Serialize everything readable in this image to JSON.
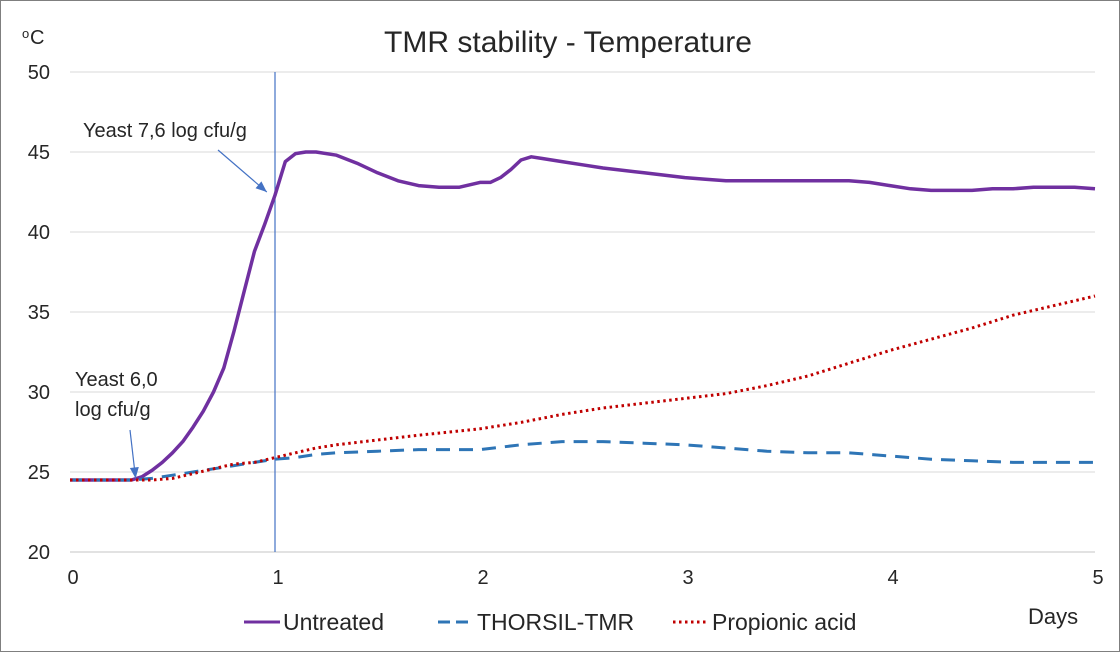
{
  "chart_data": {
    "type": "line",
    "title": "TMR stability - Temperature",
    "ylabel_prefix": "o",
    "ylabel_main": "C",
    "xlabel": "Days",
    "xlim": [
      0,
      5
    ],
    "ylim": [
      20,
      50
    ],
    "xticks": [
      0,
      1,
      2,
      3,
      4,
      5
    ],
    "yticks": [
      20,
      25,
      30,
      35,
      40,
      45,
      50
    ],
    "grid": true,
    "legend_position": "bottom",
    "vertical_marker_x": 1,
    "annotations": [
      {
        "lines": [
          "Yeast 7,6 log cfu/g"
        ],
        "arrow_to": [
          0.96,
          42.5
        ]
      },
      {
        "lines": [
          "Yeast 6,0",
          "log cfu/g"
        ],
        "arrow_to": [
          0.32,
          24.6
        ]
      }
    ],
    "series": [
      {
        "name": "Untreated",
        "color": "#7030a0",
        "style": "solid",
        "points": [
          [
            0,
            24.5
          ],
          [
            0.3,
            24.5
          ],
          [
            0.35,
            24.7
          ],
          [
            0.4,
            25.1
          ],
          [
            0.45,
            25.6
          ],
          [
            0.5,
            26.2
          ],
          [
            0.55,
            26.9
          ],
          [
            0.6,
            27.8
          ],
          [
            0.65,
            28.8
          ],
          [
            0.7,
            30.0
          ],
          [
            0.75,
            31.5
          ],
          [
            0.8,
            33.8
          ],
          [
            0.85,
            36.3
          ],
          [
            0.9,
            38.8
          ],
          [
            0.95,
            40.5
          ],
          [
            1.0,
            42.3
          ],
          [
            1.05,
            44.4
          ],
          [
            1.1,
            44.9
          ],
          [
            1.15,
            45.0
          ],
          [
            1.2,
            45.0
          ],
          [
            1.3,
            44.8
          ],
          [
            1.4,
            44.3
          ],
          [
            1.5,
            43.7
          ],
          [
            1.6,
            43.2
          ],
          [
            1.7,
            42.9
          ],
          [
            1.8,
            42.8
          ],
          [
            1.9,
            42.8
          ],
          [
            2.0,
            43.1
          ],
          [
            2.05,
            43.1
          ],
          [
            2.1,
            43.4
          ],
          [
            2.15,
            43.9
          ],
          [
            2.2,
            44.5
          ],
          [
            2.25,
            44.7
          ],
          [
            2.3,
            44.6
          ],
          [
            2.4,
            44.4
          ],
          [
            2.5,
            44.2
          ],
          [
            2.6,
            44.0
          ],
          [
            2.8,
            43.7
          ],
          [
            3.0,
            43.4
          ],
          [
            3.1,
            43.3
          ],
          [
            3.2,
            43.2
          ],
          [
            3.4,
            43.2
          ],
          [
            3.6,
            43.2
          ],
          [
            3.8,
            43.2
          ],
          [
            3.9,
            43.1
          ],
          [
            4.0,
            42.9
          ],
          [
            4.1,
            42.7
          ],
          [
            4.2,
            42.6
          ],
          [
            4.3,
            42.6
          ],
          [
            4.4,
            42.6
          ],
          [
            4.5,
            42.7
          ],
          [
            4.6,
            42.7
          ],
          [
            4.7,
            42.8
          ],
          [
            4.8,
            42.8
          ],
          [
            4.9,
            42.8
          ],
          [
            5.0,
            42.7
          ]
        ]
      },
      {
        "name": "THORSIL-TMR",
        "color": "#2e75b6",
        "style": "dashed",
        "points": [
          [
            0,
            24.5
          ],
          [
            0.3,
            24.5
          ],
          [
            0.4,
            24.6
          ],
          [
            0.5,
            24.8
          ],
          [
            0.6,
            25.0
          ],
          [
            0.7,
            25.2
          ],
          [
            0.8,
            25.4
          ],
          [
            0.9,
            25.6
          ],
          [
            1.0,
            25.8
          ],
          [
            1.1,
            25.9
          ],
          [
            1.2,
            26.1
          ],
          [
            1.3,
            26.2
          ],
          [
            1.5,
            26.3
          ],
          [
            1.7,
            26.4
          ],
          [
            2.0,
            26.4
          ],
          [
            2.2,
            26.7
          ],
          [
            2.4,
            26.9
          ],
          [
            2.6,
            26.9
          ],
          [
            2.8,
            26.8
          ],
          [
            3.0,
            26.7
          ],
          [
            3.2,
            26.5
          ],
          [
            3.4,
            26.3
          ],
          [
            3.6,
            26.2
          ],
          [
            3.8,
            26.2
          ],
          [
            4.0,
            26.0
          ],
          [
            4.2,
            25.8
          ],
          [
            4.4,
            25.7
          ],
          [
            4.6,
            25.6
          ],
          [
            4.8,
            25.6
          ],
          [
            5.0,
            25.6
          ]
        ]
      },
      {
        "name": "Propionic acid",
        "color": "#c00000",
        "style": "dotted",
        "points": [
          [
            0,
            24.5
          ],
          [
            0.3,
            24.5
          ],
          [
            0.4,
            24.5
          ],
          [
            0.5,
            24.6
          ],
          [
            0.6,
            24.9
          ],
          [
            0.7,
            25.2
          ],
          [
            0.8,
            25.5
          ],
          [
            0.9,
            25.6
          ],
          [
            1.0,
            25.9
          ],
          [
            1.1,
            26.2
          ],
          [
            1.2,
            26.5
          ],
          [
            1.3,
            26.7
          ],
          [
            1.5,
            27.0
          ],
          [
            1.7,
            27.3
          ],
          [
            2.0,
            27.7
          ],
          [
            2.2,
            28.1
          ],
          [
            2.4,
            28.6
          ],
          [
            2.6,
            29.0
          ],
          [
            2.8,
            29.3
          ],
          [
            3.0,
            29.6
          ],
          [
            3.2,
            29.9
          ],
          [
            3.4,
            30.4
          ],
          [
            3.6,
            31.0
          ],
          [
            3.8,
            31.8
          ],
          [
            4.0,
            32.6
          ],
          [
            4.2,
            33.3
          ],
          [
            4.4,
            34.0
          ],
          [
            4.6,
            34.8
          ],
          [
            4.8,
            35.4
          ],
          [
            5.0,
            36.0
          ]
        ]
      }
    ]
  }
}
